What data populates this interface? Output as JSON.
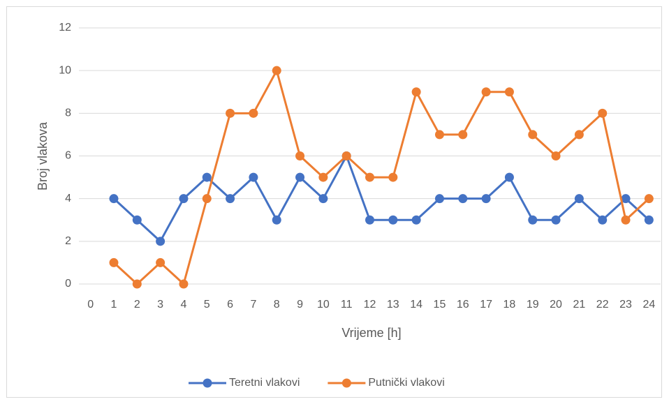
{
  "chart_data": {
    "type": "line",
    "x_label": "Vrijeme [h]",
    "y_label": "Broj vlakova",
    "categories": [
      "0",
      "1",
      "2",
      "3",
      "4",
      "5",
      "6",
      "7",
      "8",
      "9",
      "10",
      "11",
      "12",
      "13",
      "14",
      "15",
      "16",
      "17",
      "18",
      "19",
      "20",
      "21",
      "22",
      "23",
      "24"
    ],
    "series": [
      {
        "name": "Teretni vlakovi",
        "color": "#4472c4",
        "values": [
          null,
          4,
          3,
          2,
          4,
          5,
          4,
          5,
          3,
          5,
          4,
          6,
          3,
          3,
          3,
          4,
          4,
          4,
          5,
          3,
          3,
          4,
          3,
          4,
          3
        ]
      },
      {
        "name": "Putnički vlakovi",
        "color": "#ed7d31",
        "values": [
          null,
          1,
          0,
          1,
          0,
          4,
          8,
          8,
          10,
          6,
          5,
          6,
          5,
          5,
          9,
          7,
          7,
          9,
          9,
          7,
          6,
          7,
          8,
          3,
          4
        ]
      }
    ],
    "ylim": [
      0,
      12
    ],
    "yticks": [
      0,
      2,
      4,
      6,
      8,
      10,
      12
    ],
    "grid": true,
    "legend": "bottom"
  }
}
